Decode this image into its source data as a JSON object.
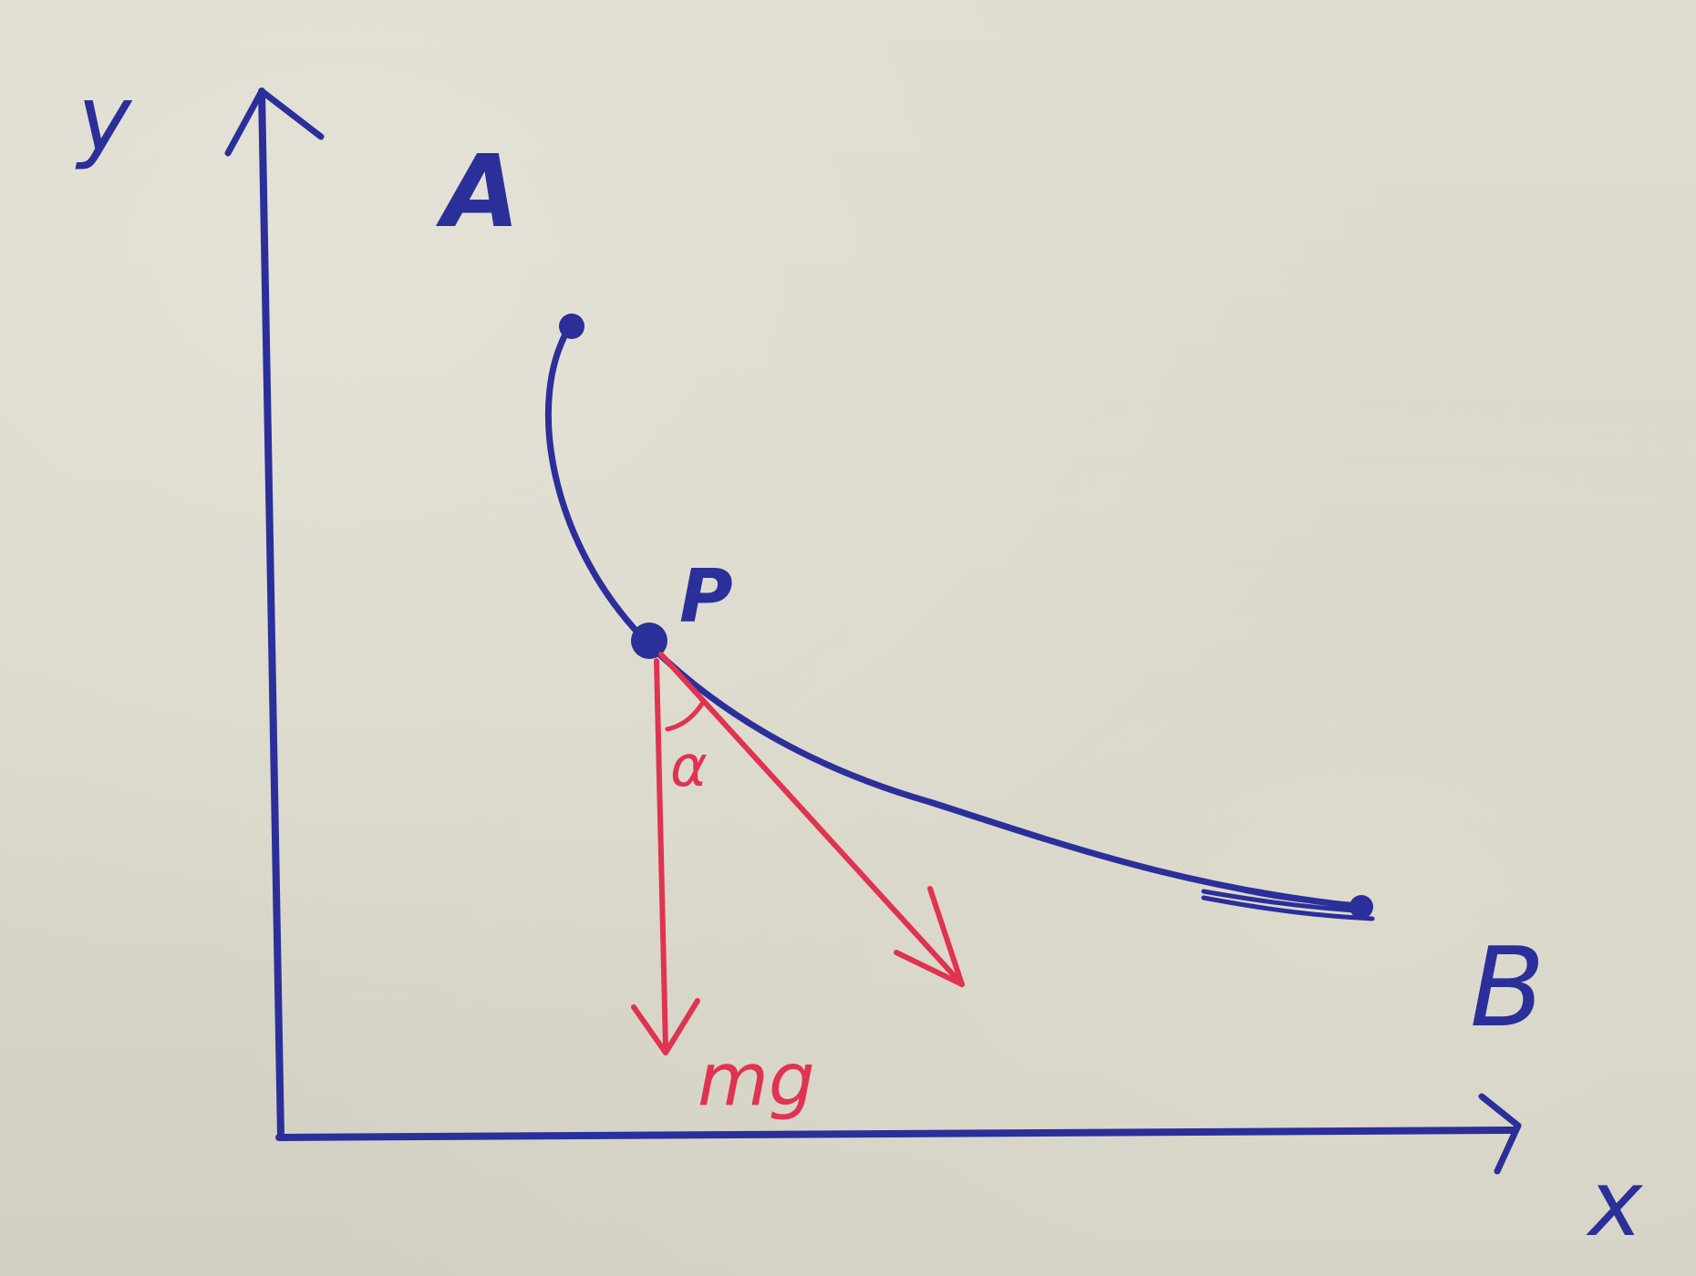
{
  "diagram": {
    "axes": {
      "x_label": "x",
      "y_label": "y"
    },
    "points": {
      "start": "A",
      "particle": "P",
      "end": "B"
    },
    "forces": {
      "weight": "mg",
      "angle": "α"
    },
    "colors": {
      "ink_blue": "#2b2f9a",
      "ink_red": "#e0334f",
      "paper": "#dcdacd"
    }
  }
}
